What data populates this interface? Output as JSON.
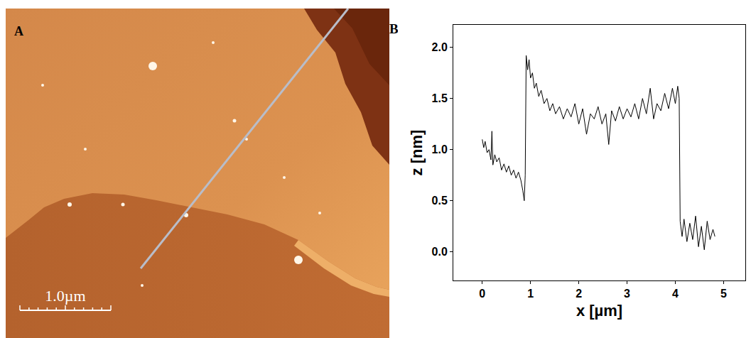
{
  "panel_a": {
    "label": "A",
    "scale_bar": "1.0µm"
  },
  "chart_data": {
    "label": "B",
    "type": "line",
    "x_label": "x [µm]",
    "y_label": "z [nm]",
    "color": "#000000",
    "grid": false,
    "x": [
      0,
      0.03,
      0.06,
      0.1,
      0.14,
      0.18,
      0.2,
      0.22,
      0.26,
      0.3,
      0.35,
      0.4,
      0.45,
      0.5,
      0.55,
      0.6,
      0.65,
      0.7,
      0.75,
      0.8,
      0.84,
      0.87,
      0.89,
      0.91,
      0.94,
      0.97,
      1.0,
      1.04,
      1.08,
      1.12,
      1.17,
      1.22,
      1.28,
      1.34,
      1.4,
      1.46,
      1.52,
      1.6,
      1.68,
      1.76,
      1.84,
      1.92,
      2.0,
      2.08,
      2.16,
      2.24,
      2.32,
      2.4,
      2.48,
      2.56,
      2.62,
      2.68,
      2.76,
      2.84,
      2.92,
      3.0,
      3.08,
      3.16,
      3.24,
      3.32,
      3.4,
      3.48,
      3.55,
      3.62,
      3.7,
      3.78,
      3.86,
      3.94,
      4.0,
      4.05,
      4.08,
      4.1,
      4.14,
      4.18,
      4.24,
      4.3,
      4.36,
      4.42,
      4.48,
      4.54,
      4.6,
      4.66,
      4.72,
      4.78,
      4.82
    ],
    "values": [
      1.1,
      1.02,
      1.08,
      0.97,
      1.0,
      0.9,
      1.18,
      0.85,
      0.95,
      0.88,
      0.92,
      0.8,
      0.86,
      0.78,
      0.84,
      0.75,
      0.8,
      0.72,
      0.78,
      0.7,
      0.6,
      0.5,
      0.75,
      1.92,
      1.78,
      1.88,
      1.7,
      1.75,
      1.6,
      1.65,
      1.52,
      1.58,
      1.45,
      1.5,
      1.38,
      1.45,
      1.35,
      1.42,
      1.3,
      1.4,
      1.32,
      1.45,
      1.25,
      1.4,
      1.15,
      1.35,
      1.3,
      1.42,
      1.25,
      1.35,
      1.05,
      1.38,
      1.28,
      1.42,
      1.3,
      1.4,
      1.32,
      1.45,
      1.3,
      1.5,
      1.35,
      1.6,
      1.3,
      1.45,
      1.38,
      1.55,
      1.4,
      1.6,
      1.45,
      1.62,
      1.5,
      0.3,
      0.15,
      0.32,
      0.1,
      0.28,
      0.12,
      0.35,
      0.05,
      0.25,
      0.02,
      0.3,
      0.12,
      0.22,
      0.15
    ],
    "xlim": [
      -0.6,
      5.45
    ],
    "xticks": [
      0,
      1,
      2,
      3,
      4,
      5
    ],
    "ylim": [
      -0.28,
      2.22
    ],
    "yticks": [
      {
        "value": 0,
        "label": "0.0"
      },
      {
        "value": 0.5,
        "label": "0.5"
      },
      {
        "value": 1,
        "label": "1.0"
      },
      {
        "value": 1.5,
        "label": "1.5"
      },
      {
        "value": 2,
        "label": "2.0"
      }
    ]
  }
}
